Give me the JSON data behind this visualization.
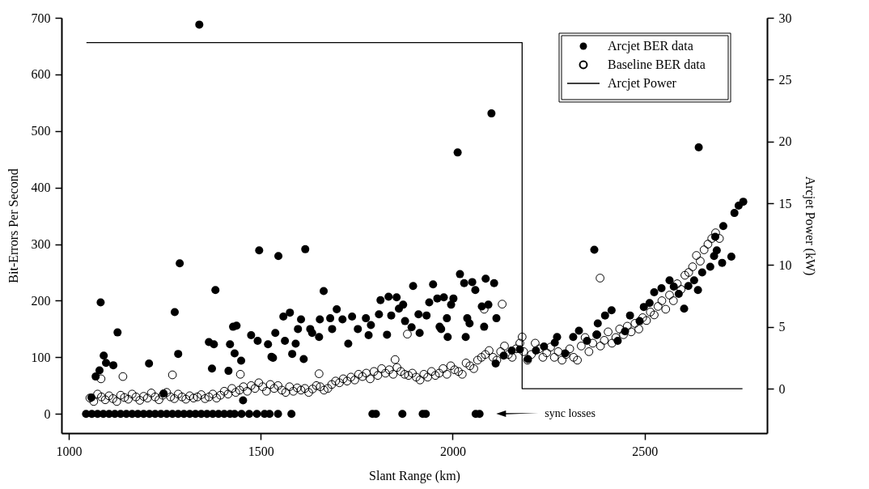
{
  "chart_data": {
    "type": "scatter",
    "xlabel": "Slant Range (km)",
    "ylabel": "Bit-Errors Per Second",
    "y2label": "Arcjet Power (kW)",
    "xlim": [
      981,
      2819
    ],
    "xticks": [
      1000,
      1500,
      2000,
      2500
    ],
    "ylim": [
      -34,
      700
    ],
    "yticks": [
      0,
      100,
      200,
      300,
      400,
      500,
      600,
      700
    ],
    "y2lim": [
      -3.6,
      30
    ],
    "y2ticks": [
      0,
      5,
      10,
      15,
      20,
      25,
      30
    ],
    "legend": "top right",
    "grid": false,
    "annotations": [
      "sync losses"
    ],
    "series": [
      {
        "name": "Arcjet BER data",
        "marker": "circle",
        "color": "#000000",
        "x": [
          1045,
          1060,
          1075,
          1090,
          1105,
          1120,
          1135,
          1150,
          1165,
          1180,
          1195,
          1210,
          1225,
          1240,
          1255,
          1270,
          1285,
          1300,
          1315,
          1330,
          1345,
          1360,
          1375,
          1390,
          1405,
          1420,
          1432,
          1450,
          1470,
          1490,
          1510,
          1523,
          1545,
          1580,
          1791,
          1800,
          1869,
          1922,
          1930,
          2060,
          2070,
          1059,
          1247,
          1454,
          1083,
          1070,
          1080,
          1091,
          1097,
          1116,
          1127,
          1209,
          1289,
          1276,
          1285,
          1365,
          1378,
          1382,
          1373,
          1416,
          1420,
          1428,
          1437,
          1432,
          1449,
          1475,
          1492,
          1496,
          1546,
          1616,
          1340,
          1519,
          1532,
          1528,
          1538,
          1559,
          1576,
          1563,
          1582,
          1591,
          1605,
          1612,
          1597,
          1629,
          1634,
          1654,
          1664,
          1652,
          1681,
          1698,
          1686,
          1713,
          1728,
          1738,
          1753,
          1774,
          1781,
          1787,
          1808,
          1812,
          1829,
          1833,
          1854,
          1840,
          1871,
          1860,
          1876,
          1897,
          1893,
          1914,
          1911,
          1932,
          1939,
          1949,
          1960,
          1977,
          1966,
          1985,
          2002,
          2019,
          2030,
          2051,
          2059,
          2086,
          2108,
          2076,
          2093,
          2038,
          2044,
          2082,
          2114,
          2034,
          1987,
          1970,
          1996,
          2013,
          2101,
          2641,
          2369,
          2112,
          2133,
          2154,
          2175,
          2196,
          2217,
          2238,
          2266,
          2272,
          2293,
          2314,
          2329,
          2350,
          2376,
          2378,
          2397,
          2414,
          2430,
          2449,
          2462,
          2487,
          2498,
          2513,
          2525,
          2544,
          2565,
          2576,
          2589,
          2603,
          2614,
          2629,
          2639,
          2650,
          2671,
          2681,
          2702,
          2688,
          2726,
          2684,
          2705,
          2734,
          2745,
          2757
        ],
        "values": [
          0,
          0,
          0,
          0,
          0,
          0,
          0,
          0,
          0,
          0,
          0,
          0,
          0,
          0,
          0,
          0,
          0,
          0,
          0,
          0,
          0,
          0,
          0,
          0,
          0,
          0,
          0,
          0,
          0,
          0,
          0,
          0,
          0,
          0,
          0,
          0,
          0,
          0,
          0,
          0,
          0,
          29,
          36,
          24,
          197,
          66,
          77,
          103,
          90,
          86,
          144,
          89,
          266,
          180,
          106,
          127,
          123,
          219,
          80,
          76,
          123,
          154,
          156,
          107,
          94,
          139,
          129,
          289,
          279,
          291,
          688,
          123,
          99,
          101,
          143,
          172,
          179,
          129,
          106,
          124,
          167,
          97,
          150,
          150,
          143,
          167,
          217,
          136,
          169,
          185,
          150,
          167,
          124,
          172,
          150,
          169,
          139,
          157,
          176,
          201,
          140,
          207,
          206,
          174,
          193,
          186,
          164,
          226,
          153,
          143,
          176,
          174,
          197,
          229,
          204,
          206,
          154,
          169,
          204,
          247,
          231,
          233,
          219,
          239,
          231,
          190,
          193,
          169,
          160,
          154,
          169,
          136,
          136,
          150,
          193,
          462,
          531,
          471,
          290,
          89,
          103,
          112,
          114,
          97,
          112,
          119,
          126,
          136,
          107,
          136,
          147,
          129,
          140,
          160,
          174,
          183,
          129,
          146,
          174,
          164,
          189,
          196,
          215,
          222,
          236,
          225,
          212,
          186,
          226,
          236,
          219,
          250,
          260,
          279,
          267,
          289,
          278,
          313,
          332,
          355,
          368,
          375
        ]
      },
      {
        "name": "Baseline BER data",
        "marker": "open circle",
        "color": "#000000",
        "x": [
          1055,
          1065,
          1075,
          1085,
          1095,
          1105,
          1115,
          1125,
          1135,
          1145,
          1155,
          1165,
          1175,
          1185,
          1195,
          1205,
          1215,
          1225,
          1235,
          1245,
          1255,
          1265,
          1275,
          1285,
          1295,
          1305,
          1315,
          1325,
          1335,
          1345,
          1355,
          1365,
          1375,
          1385,
          1395,
          1405,
          1415,
          1425,
          1435,
          1445,
          1455,
          1465,
          1475,
          1485,
          1495,
          1505,
          1515,
          1525,
          1535,
          1545,
          1555,
          1565,
          1575,
          1585,
          1595,
          1605,
          1615,
          1625,
          1635,
          1645,
          1655,
          1665,
          1675,
          1685,
          1695,
          1705,
          1715,
          1725,
          1735,
          1745,
          1755,
          1765,
          1775,
          1785,
          1795,
          1805,
          1815,
          1825,
          1835,
          1845,
          1855,
          1865,
          1875,
          1885,
          1895,
          1905,
          1915,
          1925,
          1935,
          1945,
          1955,
          1965,
          1975,
          1985,
          1995,
          2005,
          2015,
          2025,
          2035,
          2045,
          2055,
          2065,
          2075,
          2085,
          2095,
          2105,
          2115,
          2125,
          2135,
          2145,
          2155,
          2165,
          2175,
          2185,
          2195,
          2205,
          2215,
          2225,
          2235,
          2245,
          2255,
          2265,
          2275,
          2285,
          2295,
          2305,
          2315,
          2325,
          2335,
          2345,
          2355,
          2365,
          2375,
          2385,
          2395,
          2405,
          2415,
          2425,
          2435,
          2445,
          2455,
          2465,
          2475,
          2485,
          2495,
          2505,
          2515,
          2525,
          2535,
          2545,
          2555,
          2565,
          2575,
          2585,
          2595,
          2605,
          2615,
          2625,
          2635,
          2645,
          2655,
          2665,
          2675,
          2685,
          2695,
          1084,
          1141,
          1270,
          1447,
          1652,
          1882,
          1850,
          2129,
          2082,
          2384,
          2181
        ],
        "values": [
          28,
          22,
          35,
          30,
          25,
          32,
          27,
          22,
          33,
          29,
          26,
          35,
          30,
          24,
          31,
          28,
          37,
          30,
          25,
          33,
          38,
          30,
          27,
          35,
          30,
          26,
          32,
          28,
          30,
          34,
          27,
          30,
          35,
          28,
          33,
          40,
          35,
          45,
          38,
          42,
          48,
          40,
          50,
          45,
          55,
          48,
          40,
          52,
          45,
          50,
          42,
          38,
          48,
          40,
          46,
          42,
          45,
          38,
          44,
          50,
          48,
          42,
          45,
          52,
          58,
          55,
          62,
          58,
          65,
          60,
          70,
          66,
          72,
          62,
          75,
          68,
          80,
          72,
          78,
          70,
          82,
          75,
          70,
          68,
          72,
          65,
          60,
          70,
          65,
          75,
          68,
          72,
          80,
          70,
          85,
          78,
          75,
          70,
          90,
          85,
          80,
          95,
          100,
          105,
          112,
          100,
          95,
          110,
          120,
          105,
          100,
          115,
          125,
          110,
          95,
          105,
          125,
          115,
          100,
          108,
          118,
          100,
          110,
          95,
          105,
          115,
          100,
          95,
          120,
          135,
          110,
          125,
          140,
          120,
          130,
          145,
          125,
          135,
          150,
          140,
          155,
          145,
          160,
          150,
          170,
          165,
          180,
          175,
          190,
          200,
          185,
          210,
          200,
          230,
          220,
          245,
          250,
          260,
          280,
          270,
          290,
          300,
          310,
          320,
          310,
          62,
          66,
          69,
          70,
          71,
          141,
          96,
          194,
          185,
          240,
          136
        ]
      },
      {
        "name": "Arcjet Power",
        "type": "line",
        "axis": "y2",
        "line_style": "solid",
        "color": "#000000",
        "x": [
          1046,
          2181,
          2181,
          2755
        ],
        "values": [
          28,
          28,
          0,
          0
        ]
      }
    ]
  }
}
